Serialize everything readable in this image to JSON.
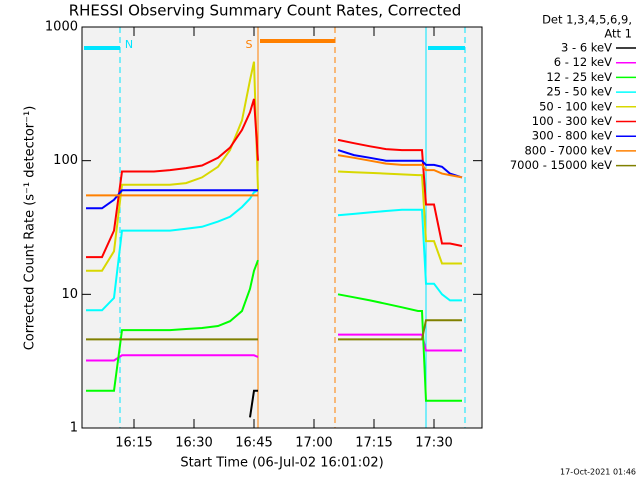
{
  "chart_data": {
    "type": "line",
    "title": "RHESSI Observing Summary Count Rates, Corrected",
    "xlabel": "Start Time (06-Jul-02 16:01:02)",
    "ylabel": "Corrected Count Rate (s⁻¹ detector⁻¹)",
    "legend_title": [
      "Det 1,3,4,5,6,9,",
      "Att 1"
    ],
    "footer": "17-Oct-2021 01:46",
    "ylog": true,
    "xlim": [
      962,
      1062
    ],
    "ylim": [
      1,
      1000
    ],
    "xticks": [
      {
        "value": 975,
        "label": "16:15"
      },
      {
        "value": 990,
        "label": "16:30"
      },
      {
        "value": 1005,
        "label": "16:45"
      },
      {
        "value": 1020,
        "label": "17:00"
      },
      {
        "value": 1035,
        "label": "17:15"
      },
      {
        "value": 1050,
        "label": "17:30"
      }
    ],
    "yticks": [
      1,
      10,
      100,
      1000
    ],
    "intervals": [
      {
        "label": "N",
        "start": 962,
        "end": 971.5,
        "color": "#00e5ff"
      },
      {
        "start": 1048,
        "end": 1057.75,
        "color": "#00e5ff"
      },
      {
        "label": "S",
        "start": 1006,
        "end": 1025.25,
        "color": "#ff8000"
      }
    ],
    "x": [
      963,
      967,
      970,
      972,
      976,
      980,
      984,
      988,
      992,
      996,
      999,
      1002,
      1004,
      1005,
      1006,
      1015,
      1026,
      1030,
      1034,
      1038,
      1042,
      1046,
      1047,
      1048,
      1050,
      1052,
      1054,
      1057
    ],
    "series": [
      {
        "name": "3 - 6 keV",
        "color": "#000000",
        "values": [
          null,
          null,
          null,
          null,
          null,
          null,
          null,
          null,
          null,
          null,
          null,
          null,
          1.2,
          1.9,
          1.9,
          null,
          null,
          null,
          null,
          null,
          null,
          null,
          null,
          null,
          null,
          null,
          null,
          null
        ]
      },
      {
        "name": "6 - 12 keV",
        "color": "#ff00ff",
        "values": [
          3.2,
          3.2,
          3.2,
          3.5,
          3.5,
          3.5,
          3.5,
          3.5,
          3.5,
          3.5,
          3.5,
          3.5,
          3.5,
          3.5,
          3.4,
          null,
          5,
          5,
          5,
          5,
          5,
          5,
          5,
          3.8,
          3.8,
          3.8,
          3.8,
          3.8
        ]
      },
      {
        "name": "12 - 25 keV",
        "color": "#00ff00",
        "values": [
          1.9,
          1.9,
          1.9,
          5.4,
          5.4,
          5.4,
          5.4,
          5.5,
          5.6,
          5.8,
          6.3,
          7.5,
          11,
          15,
          18,
          null,
          10,
          9.5,
          9,
          8.5,
          8,
          7.5,
          7.5,
          1.6,
          1.6,
          1.6,
          1.6,
          1.6
        ]
      },
      {
        "name": "25 - 50 keV",
        "color": "#00ffff",
        "values": [
          7.6,
          7.6,
          9.4,
          30,
          30,
          30,
          30,
          31,
          32,
          35,
          38,
          45,
          52,
          58,
          60,
          null,
          39,
          40,
          41,
          42,
          43,
          43,
          43,
          12,
          12,
          10,
          9,
          9
        ]
      },
      {
        "name": "50 - 100 keV",
        "color": "#d8d800",
        "values": [
          15,
          15,
          21,
          66,
          66,
          66,
          66,
          68,
          75,
          90,
          120,
          200,
          400,
          550,
          60,
          null,
          83,
          82,
          81,
          80,
          79,
          78,
          78,
          25,
          25,
          17,
          17,
          17
        ]
      },
      {
        "name": "100 - 300 keV",
        "color": "#ff0000",
        "values": [
          19,
          19,
          30,
          83,
          83,
          83,
          85,
          88,
          92,
          105,
          125,
          170,
          230,
          290,
          100,
          null,
          143,
          135,
          128,
          122,
          120,
          120,
          120,
          47,
          47,
          24,
          24,
          23
        ]
      },
      {
        "name": "300 - 800 keV",
        "color": "#0000ff",
        "values": [
          44,
          44,
          51,
          60,
          60,
          60,
          60,
          60,
          60,
          60,
          60,
          60,
          60,
          60,
          60,
          null,
          120,
          110,
          105,
          100,
          100,
          100,
          100,
          93,
          93,
          90,
          80,
          75
        ]
      },
      {
        "name": "800 - 7000 keV",
        "color": "#ff8000",
        "values": [
          55,
          55,
          55,
          55,
          55,
          55,
          55,
          55,
          55,
          55,
          55,
          55,
          55,
          55,
          55,
          null,
          110,
          105,
          100,
          95,
          93,
          93,
          93,
          85,
          85,
          80,
          78,
          75
        ]
      },
      {
        "name": "7000 - 15000 keV",
        "color": "#808000",
        "values": [
          4.6,
          4.6,
          4.6,
          4.6,
          4.6,
          4.6,
          4.6,
          4.6,
          4.6,
          4.6,
          4.6,
          4.6,
          4.6,
          4.6,
          4.6,
          null,
          4.6,
          4.6,
          4.6,
          4.6,
          4.6,
          4.6,
          4.6,
          6.4,
          6.4,
          6.4,
          6.4,
          6.4
        ]
      }
    ]
  }
}
